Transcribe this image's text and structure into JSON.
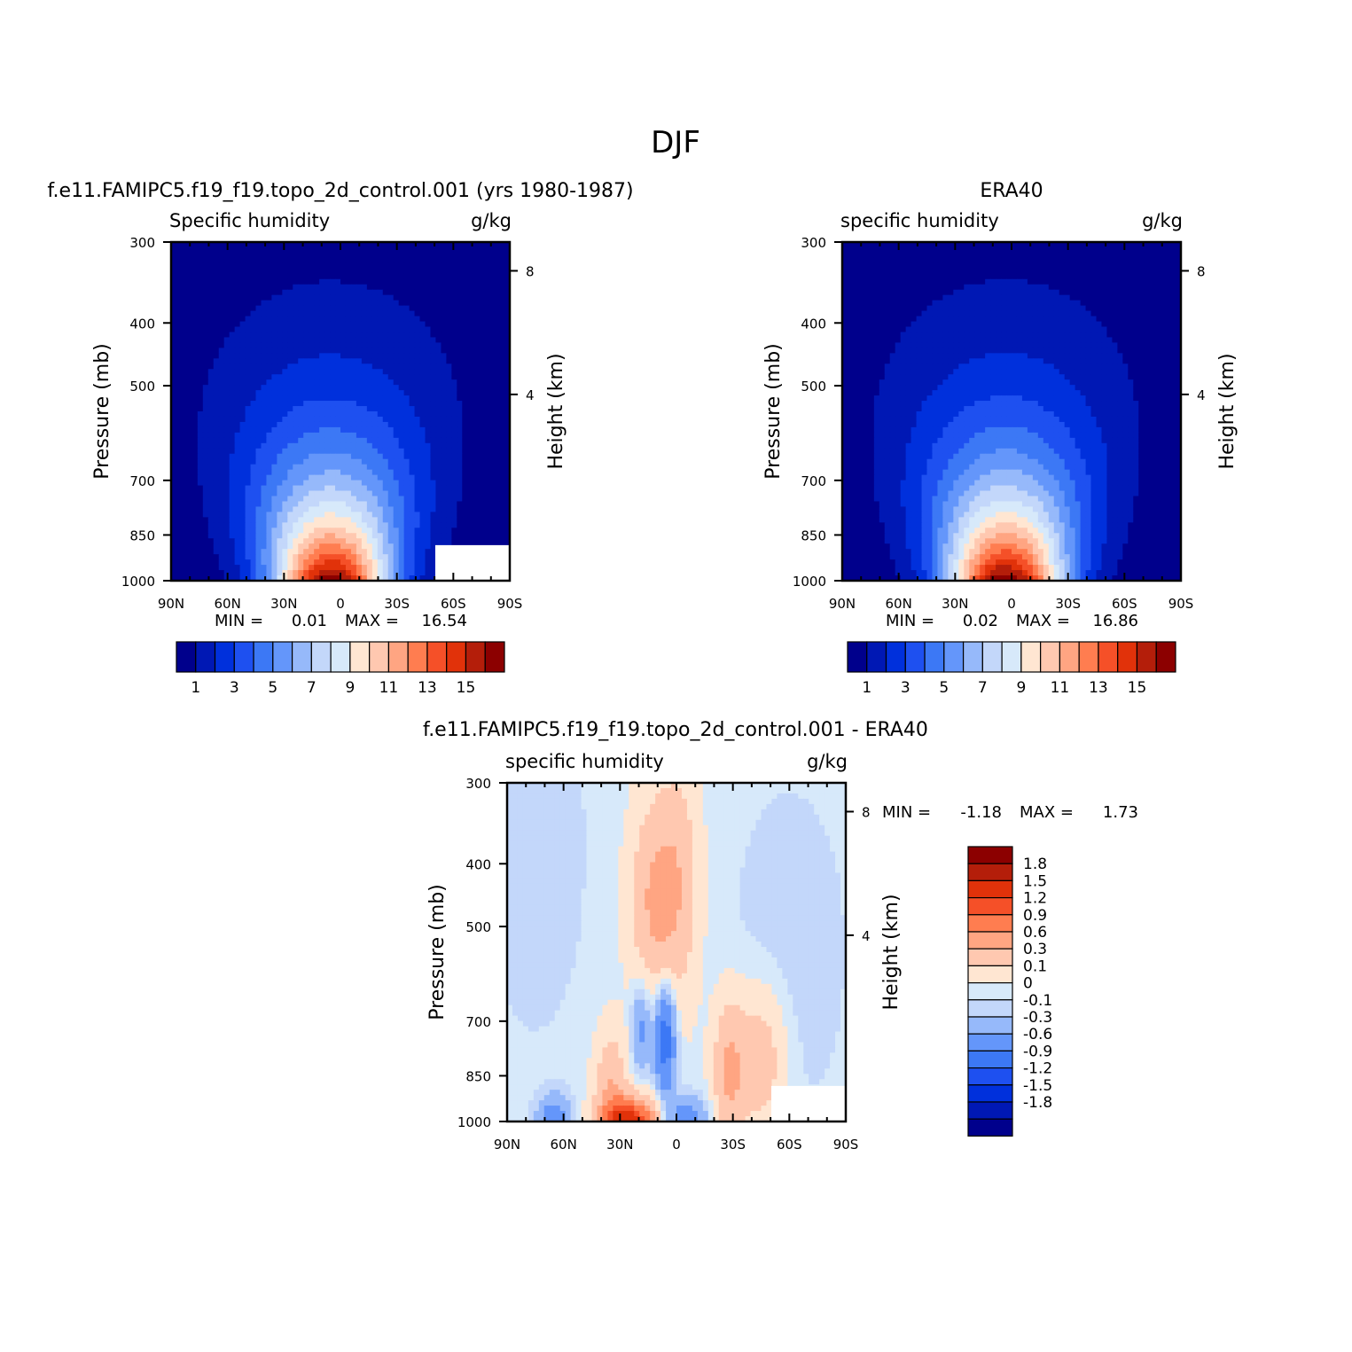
{
  "title": "DJF",
  "colors": {
    "main_scale": [
      "#00008c",
      "#0018b4",
      "#0030dc",
      "#1e50f0",
      "#3c78f5",
      "#6496fa",
      "#96b9fa",
      "#c3d7fa",
      "#d7e9fa",
      "#ffe6d2",
      "#ffc8b0",
      "#ffa582",
      "#ff7d50",
      "#f55028",
      "#e1320a",
      "#b41e0a",
      "#8c0000"
    ],
    "diff_scale": [
      "#00008c",
      "#0018b4",
      "#0030dc",
      "#1e50f0",
      "#3c78f5",
      "#6496fa",
      "#96b9fa",
      "#c3d7fa",
      "#d7e9fa",
      "#ffe6d2",
      "#ffc8b0",
      "#ffa582",
      "#ff7d50",
      "#f55028",
      "#e1320a",
      "#b41e0a",
      "#8c0000"
    ]
  },
  "chart_data": [
    {
      "type": "heatmap",
      "id": "model",
      "title": "f.e11.FAMIPC5.f19_f19.topo_2d_control.001 (yrs 1980-1987)",
      "left_label": "Specific humidity",
      "right_label": "g/kg",
      "ylabel": "Pressure (mb)",
      "y2label": "Height (km)",
      "x_ticks": [
        "90N",
        "60N",
        "30N",
        "0",
        "30S",
        "60S",
        "90S"
      ],
      "y_ticks": [
        "300",
        "400",
        "500",
        "700",
        "850",
        "1000"
      ],
      "y2_ticks": [
        "8",
        "4"
      ],
      "min_label": "MIN =",
      "min_value": "0.01",
      "max_label": "MAX =",
      "max_value": "16.54",
      "peak_value": 16.54,
      "peak_lat": 5,
      "colorbar_labels": [
        "1",
        "3",
        "5",
        "7",
        "9",
        "11",
        "13",
        "15"
      ]
    },
    {
      "type": "heatmap",
      "id": "era40",
      "title": "ERA40",
      "left_label": "specific humidity",
      "right_label": "g/kg",
      "ylabel": "Pressure (mb)",
      "y2label": "Height (km)",
      "x_ticks": [
        "90N",
        "60N",
        "30N",
        "0",
        "30S",
        "60S",
        "90S"
      ],
      "y_ticks": [
        "300",
        "400",
        "500",
        "700",
        "850",
        "1000"
      ],
      "y2_ticks": [
        "8",
        "4"
      ],
      "min_label": "MIN =",
      "min_value": "0.02",
      "max_label": "MAX =",
      "max_value": "16.86",
      "peak_value": 16.86,
      "peak_lat": 3,
      "colorbar_labels": [
        "1",
        "3",
        "5",
        "7",
        "9",
        "11",
        "13",
        "15"
      ]
    },
    {
      "type": "heatmap",
      "id": "diff",
      "title": "f.e11.FAMIPC5.f19_f19.topo_2d_control.001 - ERA40",
      "left_label": "specific humidity",
      "right_label": "g/kg",
      "ylabel": "Pressure (mb)",
      "y2label": "Height (km)",
      "x_ticks": [
        "90N",
        "60N",
        "30N",
        "0",
        "30S",
        "60S",
        "90S"
      ],
      "y_ticks": [
        "300",
        "400",
        "500",
        "700",
        "850",
        "1000"
      ],
      "y2_ticks": [
        "8",
        "4"
      ],
      "min_label": "MIN =",
      "min_value": "-1.18",
      "max_label": "MAX =",
      "max_value": "1.73",
      "colorbar_labels": [
        "1.8",
        "1.5",
        "1.2",
        "0.9",
        "0.6",
        "0.3",
        "0.1",
        "0",
        "-0.1",
        "-0.3",
        "-0.6",
        "-0.9",
        "-1.2",
        "-1.5",
        "-1.8"
      ]
    }
  ]
}
